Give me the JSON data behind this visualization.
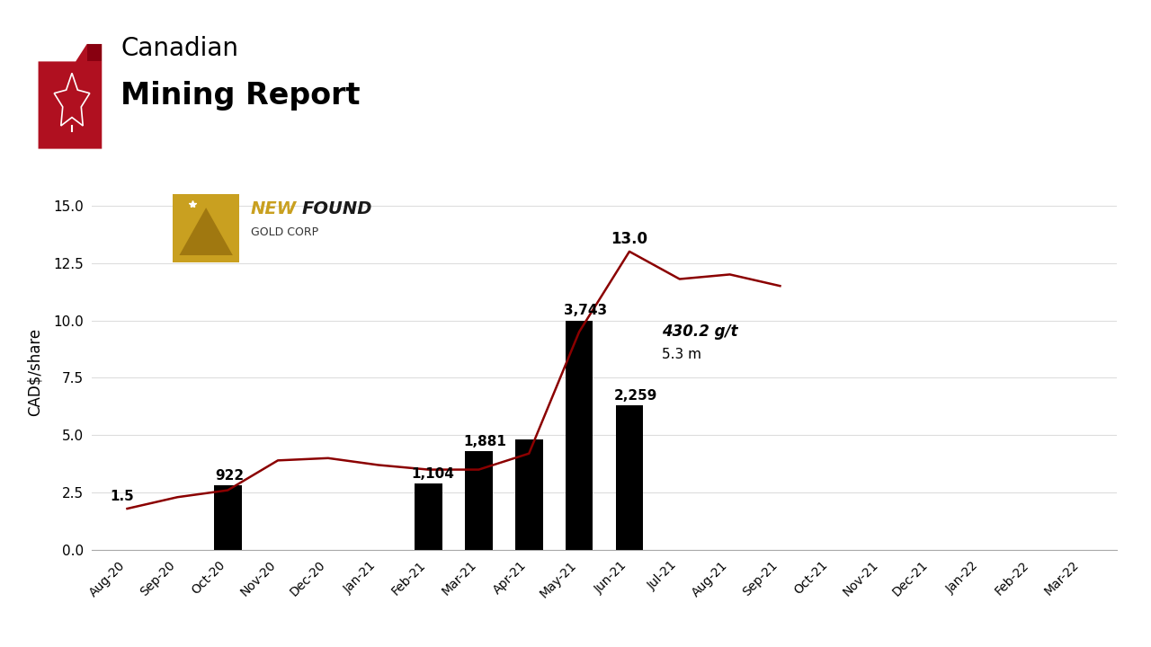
{
  "categories": [
    "Aug-20",
    "Sep-20",
    "Oct-20",
    "Nov-20",
    "Dec-20",
    "Jan-21",
    "Feb-21",
    "Mar-21",
    "Apr-21",
    "May-21",
    "Jun-21",
    "Jul-21",
    "Aug-21",
    "Sep-21",
    "Oct-21",
    "Nov-21",
    "Dec-21",
    "Jan-22",
    "Feb-22",
    "Mar-22"
  ],
  "bar_values": [
    null,
    null,
    2.8,
    null,
    null,
    null,
    2.9,
    4.3,
    4.8,
    10.0,
    6.3,
    null,
    null,
    null,
    null,
    null,
    null,
    null,
    null,
    null
  ],
  "line_values": [
    1.8,
    2.3,
    2.6,
    3.9,
    4.0,
    3.7,
    3.5,
    3.5,
    4.2,
    9.5,
    13.0,
    11.8,
    12.0,
    11.5,
    null,
    null,
    null,
    null,
    null,
    null
  ],
  "bar_color": "#000000",
  "line_color": "#8B0000",
  "background_color": "#ffffff",
  "ylabel": "CAD$/share",
  "ylim": [
    0,
    15.5
  ],
  "yticks": [
    0.0,
    2.5,
    5.0,
    7.5,
    10.0,
    12.5,
    15.0
  ],
  "grid_color": "#dddddd",
  "title_line1": "Canadian",
  "title_line2": "Mining Report",
  "newfound_new": "NEW",
  "newfound_found": "FOUND",
  "newfound_sub": "GOLD CORP",
  "label_15": "1.5",
  "label_922": "922",
  "label_1104": "1,104",
  "label_1881": "1,881",
  "label_3743": "3,743",
  "label_2259": "2,259",
  "label_130": "13.0",
  "label_grade": "430.2 g/t",
  "label_width": "5.3 m"
}
